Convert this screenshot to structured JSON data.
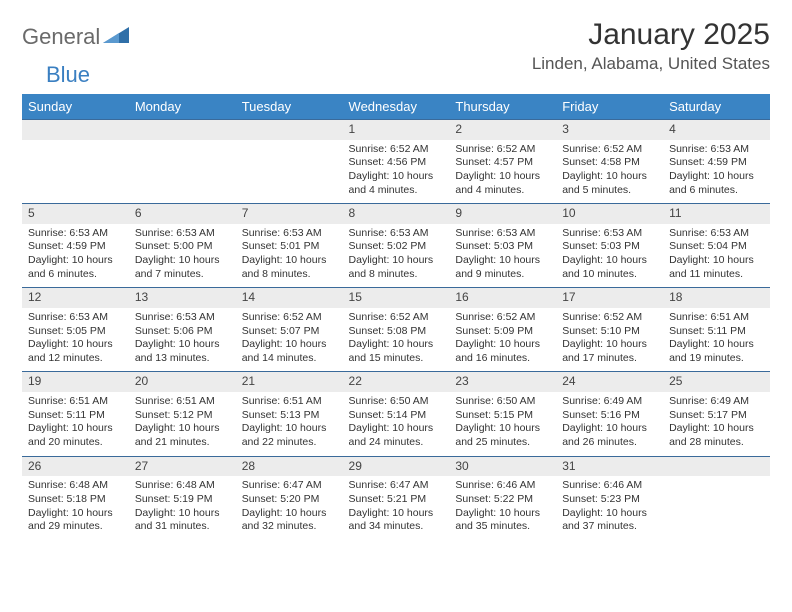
{
  "brand": {
    "part1": "General",
    "part2": "Blue"
  },
  "title": "January 2025",
  "location": "Linden, Alabama, United States",
  "day_headers": [
    "Sunday",
    "Monday",
    "Tuesday",
    "Wednesday",
    "Thursday",
    "Friday",
    "Saturday"
  ],
  "header_bg": "#3a84c4",
  "header_fg": "#ffffff",
  "stripe_bg": "#ececec",
  "border_color": "#3a6a9a",
  "logo_gray": "#6a6a6a",
  "logo_blue": "#3a7fc1",
  "weeks": [
    [
      null,
      null,
      null,
      {
        "n": "1",
        "sr": "6:52 AM",
        "ss": "4:56 PM",
        "dl": "10 hours and 4 minutes."
      },
      {
        "n": "2",
        "sr": "6:52 AM",
        "ss": "4:57 PM",
        "dl": "10 hours and 4 minutes."
      },
      {
        "n": "3",
        "sr": "6:52 AM",
        "ss": "4:58 PM",
        "dl": "10 hours and 5 minutes."
      },
      {
        "n": "4",
        "sr": "6:53 AM",
        "ss": "4:59 PM",
        "dl": "10 hours and 6 minutes."
      }
    ],
    [
      {
        "n": "5",
        "sr": "6:53 AM",
        "ss": "4:59 PM",
        "dl": "10 hours and 6 minutes."
      },
      {
        "n": "6",
        "sr": "6:53 AM",
        "ss": "5:00 PM",
        "dl": "10 hours and 7 minutes."
      },
      {
        "n": "7",
        "sr": "6:53 AM",
        "ss": "5:01 PM",
        "dl": "10 hours and 8 minutes."
      },
      {
        "n": "8",
        "sr": "6:53 AM",
        "ss": "5:02 PM",
        "dl": "10 hours and 8 minutes."
      },
      {
        "n": "9",
        "sr": "6:53 AM",
        "ss": "5:03 PM",
        "dl": "10 hours and 9 minutes."
      },
      {
        "n": "10",
        "sr": "6:53 AM",
        "ss": "5:03 PM",
        "dl": "10 hours and 10 minutes."
      },
      {
        "n": "11",
        "sr": "6:53 AM",
        "ss": "5:04 PM",
        "dl": "10 hours and 11 minutes."
      }
    ],
    [
      {
        "n": "12",
        "sr": "6:53 AM",
        "ss": "5:05 PM",
        "dl": "10 hours and 12 minutes."
      },
      {
        "n": "13",
        "sr": "6:53 AM",
        "ss": "5:06 PM",
        "dl": "10 hours and 13 minutes."
      },
      {
        "n": "14",
        "sr": "6:52 AM",
        "ss": "5:07 PM",
        "dl": "10 hours and 14 minutes."
      },
      {
        "n": "15",
        "sr": "6:52 AM",
        "ss": "5:08 PM",
        "dl": "10 hours and 15 minutes."
      },
      {
        "n": "16",
        "sr": "6:52 AM",
        "ss": "5:09 PM",
        "dl": "10 hours and 16 minutes."
      },
      {
        "n": "17",
        "sr": "6:52 AM",
        "ss": "5:10 PM",
        "dl": "10 hours and 17 minutes."
      },
      {
        "n": "18",
        "sr": "6:51 AM",
        "ss": "5:11 PM",
        "dl": "10 hours and 19 minutes."
      }
    ],
    [
      {
        "n": "19",
        "sr": "6:51 AM",
        "ss": "5:11 PM",
        "dl": "10 hours and 20 minutes."
      },
      {
        "n": "20",
        "sr": "6:51 AM",
        "ss": "5:12 PM",
        "dl": "10 hours and 21 minutes."
      },
      {
        "n": "21",
        "sr": "6:51 AM",
        "ss": "5:13 PM",
        "dl": "10 hours and 22 minutes."
      },
      {
        "n": "22",
        "sr": "6:50 AM",
        "ss": "5:14 PM",
        "dl": "10 hours and 24 minutes."
      },
      {
        "n": "23",
        "sr": "6:50 AM",
        "ss": "5:15 PM",
        "dl": "10 hours and 25 minutes."
      },
      {
        "n": "24",
        "sr": "6:49 AM",
        "ss": "5:16 PM",
        "dl": "10 hours and 26 minutes."
      },
      {
        "n": "25",
        "sr": "6:49 AM",
        "ss": "5:17 PM",
        "dl": "10 hours and 28 minutes."
      }
    ],
    [
      {
        "n": "26",
        "sr": "6:48 AM",
        "ss": "5:18 PM",
        "dl": "10 hours and 29 minutes."
      },
      {
        "n": "27",
        "sr": "6:48 AM",
        "ss": "5:19 PM",
        "dl": "10 hours and 31 minutes."
      },
      {
        "n": "28",
        "sr": "6:47 AM",
        "ss": "5:20 PM",
        "dl": "10 hours and 32 minutes."
      },
      {
        "n": "29",
        "sr": "6:47 AM",
        "ss": "5:21 PM",
        "dl": "10 hours and 34 minutes."
      },
      {
        "n": "30",
        "sr": "6:46 AM",
        "ss": "5:22 PM",
        "dl": "10 hours and 35 minutes."
      },
      {
        "n": "31",
        "sr": "6:46 AM",
        "ss": "5:23 PM",
        "dl": "10 hours and 37 minutes."
      },
      null
    ]
  ],
  "labels": {
    "sunrise": "Sunrise:",
    "sunset": "Sunset:",
    "daylight": "Daylight:"
  }
}
